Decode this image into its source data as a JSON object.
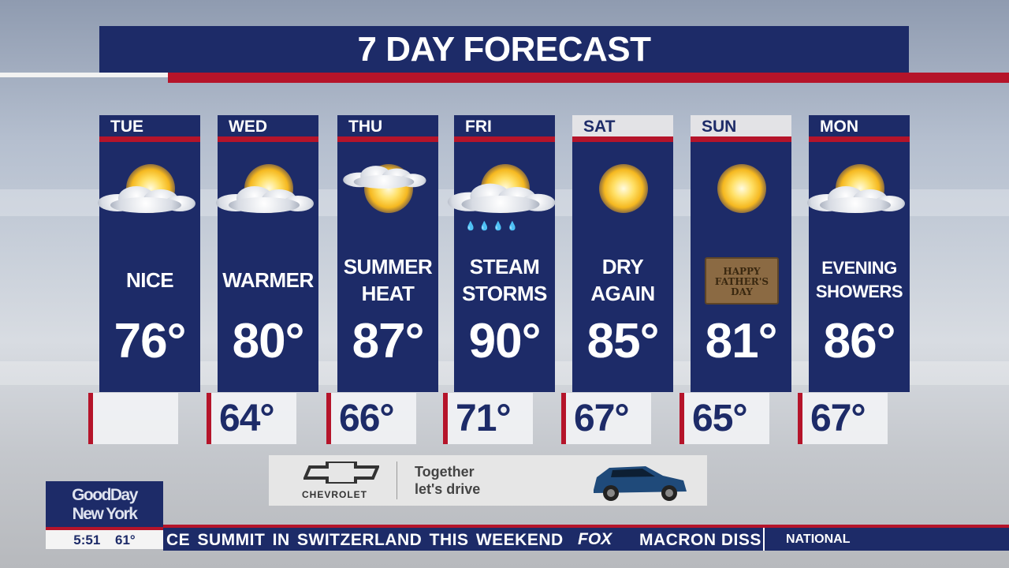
{
  "title": "7 DAY FORECAST",
  "days": [
    {
      "day": "TUE",
      "condition": "NICE",
      "high": "76°",
      "low": "",
      "icon": "sun-behind-cloud-icon"
    },
    {
      "day": "WED",
      "condition": "WARMER",
      "high": "80°",
      "low": "64°",
      "icon": "sun-behind-cloud-icon"
    },
    {
      "day": "THU",
      "condition": "SUMMER HEAT",
      "high": "87°",
      "low": "66°",
      "icon": "sun-with-small-cloud-icon"
    },
    {
      "day": "FRI",
      "condition": "STEAM STORMS",
      "high": "90°",
      "low": "71°",
      "icon": "rain-cloud-sun-icon"
    },
    {
      "day": "SAT",
      "condition": "DRY AGAIN",
      "high": "85°",
      "low": "67°",
      "icon": "sun-icon"
    },
    {
      "day": "SUN",
      "condition": "",
      "high": "81°",
      "low": "65°",
      "icon": "fathers-day-toolbox-icon",
      "badge": "HAPPY FATHER'S DAY"
    },
    {
      "day": "MON",
      "condition": "EVENING SHOWERS",
      "high": "86°",
      "low": "67°",
      "icon": "sun-behind-cloud-icon"
    }
  ],
  "ad": {
    "brand": "CHEVROLET",
    "tagline1": "Together",
    "tagline2": "let's drive"
  },
  "show": {
    "line1": "GoodDay",
    "line2": "New York",
    "time": "5:51",
    "temp": "61°"
  },
  "ticker": {
    "text": "CE SUMMIT IN SWITZERLAND THIS WEEKEND",
    "network": "FOX",
    "text2": "MACRON DISS",
    "category": "NATIONAL"
  },
  "colors": {
    "navy": "#1d2b68",
    "red": "#b5142a"
  }
}
